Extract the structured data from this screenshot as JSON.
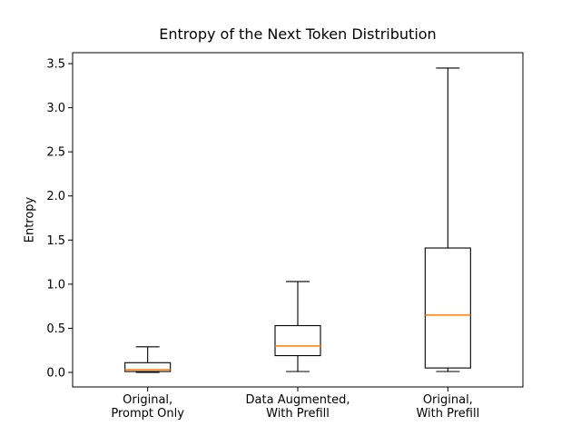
{
  "figure": {
    "background": "#ffffff"
  },
  "chart_data": {
    "type": "boxplot",
    "title": "Entropy of the Next Token Distribution",
    "ylabel": "Entropy",
    "xlabel": "",
    "categories": [
      "Original,\nPrompt Only",
      "Data Augmented,\nWith Prefill",
      "Original,\nWith Prefill"
    ],
    "yticks": [
      0.0,
      0.5,
      1.0,
      1.5,
      2.0,
      2.5,
      3.0,
      3.5
    ],
    "ylim": [
      -0.165,
      3.624
    ],
    "xlim": [
      0.5,
      3.5
    ],
    "grid": false,
    "legend": null,
    "series": [
      {
        "name": "Original, Prompt Only",
        "whislo": 0.0,
        "q1": 0.01,
        "med": 0.03,
        "q3": 0.11,
        "whishi": 0.29,
        "fliers": []
      },
      {
        "name": "Data Augmented, With Prefill",
        "whislo": 0.01,
        "q1": 0.19,
        "med": 0.3,
        "q3": 0.53,
        "whishi": 1.03,
        "fliers": []
      },
      {
        "name": "Original, With Prefill",
        "whislo": 0.01,
        "q1": 0.05,
        "med": 0.65,
        "q3": 1.41,
        "whishi": 3.45,
        "fliers": []
      }
    ],
    "colors": {
      "box_line": "#000000",
      "median_line": "#ff7f0e",
      "spine": "#000000",
      "background": "#ffffff"
    }
  }
}
